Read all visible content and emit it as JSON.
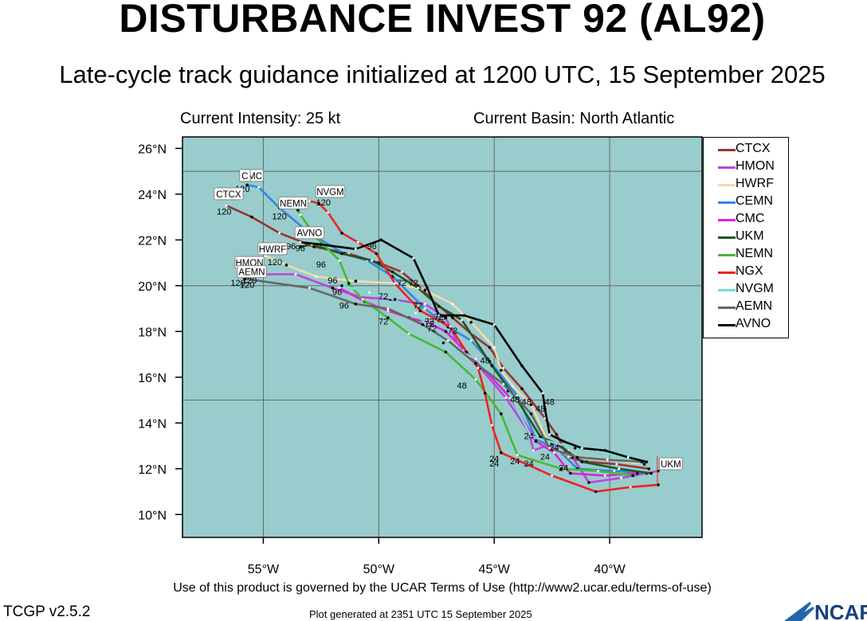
{
  "header": {
    "title": "DISTURBANCE INVEST 92 (AL92)",
    "subtitle": "Late-cycle track guidance initialized at 1200 UTC, 15 September 2025",
    "intensity": "Current Intensity: 25 kt",
    "basin": "Current Basin: North Atlantic"
  },
  "footer": {
    "terms": "Use of this product is governed by the UCAR Terms of Use (http://www2.ucar.edu/terms-of-use)",
    "version": "TCGP v2.5.2",
    "generated": "Plot generated at 2351 UTC   15 September 2025",
    "logo_text": "NCAR"
  },
  "colors": {
    "ocean": "#99cccc",
    "grid": "#666666"
  },
  "chart_data": {
    "type": "line",
    "xlim": [
      -58.5,
      -36
    ],
    "ylim": [
      9,
      26.5
    ],
    "xticks": [
      {
        "value": -55,
        "label": "55°W"
      },
      {
        "value": -50,
        "label": "50°W"
      },
      {
        "value": -45,
        "label": "45°W"
      },
      {
        "value": -40,
        "label": "40°W"
      }
    ],
    "yticks": [
      {
        "value": 10,
        "label": "10°N"
      },
      {
        "value": 12,
        "label": "12°N"
      },
      {
        "value": 14,
        "label": "14°N"
      },
      {
        "value": 16,
        "label": "16°N"
      },
      {
        "value": 18,
        "label": "18°N"
      },
      {
        "value": 20,
        "label": "20°N"
      },
      {
        "value": 22,
        "label": "22°N"
      },
      {
        "value": 24,
        "label": "24°N"
      },
      {
        "value": 26,
        "label": "26°N"
      }
    ],
    "gridlines": {
      "lons": [
        -55,
        -50,
        -45,
        -40
      ],
      "lats": [
        15,
        20,
        25
      ]
    },
    "legend_position": "right",
    "series": [
      {
        "name": "CTCX",
        "color": "#993333",
        "points": [
          [
            -38.3,
            12.0
          ],
          [
            -39.7,
            12.2
          ],
          [
            -41.0,
            12.3
          ],
          [
            -41.8,
            12.5
          ],
          [
            -42.3,
            13.5
          ],
          [
            -42.8,
            14.2
          ],
          [
            -43.8,
            15.5
          ],
          [
            -44.6,
            16.4
          ],
          [
            -45.2,
            17.3
          ],
          [
            -46.0,
            17.9
          ],
          [
            -46.8,
            18.6
          ],
          [
            -47.6,
            19.3
          ],
          [
            -48.3,
            20.0
          ],
          [
            -49.0,
            20.6
          ],
          [
            -50.0,
            21.0
          ],
          [
            -51.3,
            21.4
          ],
          [
            -52.8,
            21.7
          ],
          [
            -54.3,
            22.3
          ],
          [
            -55.5,
            23.0
          ],
          [
            -56.6,
            23.5
          ]
        ],
        "labels": [
          {
            "lon": -45.4,
            "lat": 16.6,
            "text": "48"
          },
          {
            "lon": -48.5,
            "lat": 20.0,
            "text": "72"
          }
        ]
      },
      {
        "name": "HMON",
        "color": "#bb44dd",
        "points": [
          [
            -37.9,
            11.9
          ],
          [
            -39.5,
            11.6
          ],
          [
            -40.9,
            11.4
          ],
          [
            -41.8,
            12.8
          ],
          [
            -42.5,
            13.1
          ],
          [
            -43.3,
            12.8
          ],
          [
            -43.5,
            13.6
          ],
          [
            -44.5,
            15.1
          ],
          [
            -45.6,
            16.4
          ],
          [
            -46.6,
            17.5
          ],
          [
            -47.1,
            18.6
          ],
          [
            -48.0,
            19.2
          ],
          [
            -49.5,
            19.4
          ],
          [
            -50.8,
            19.5
          ],
          [
            -52.0,
            19.9
          ],
          [
            -53.6,
            20.5
          ],
          [
            -55.5,
            20.5
          ]
        ],
        "labels": [
          {
            "lon": -44.1,
            "lat": 14.9,
            "text": "48"
          },
          {
            "lon": -47.8,
            "lat": 18.3,
            "text": "72"
          },
          {
            "lon": -49.8,
            "lat": 19.4,
            "text": "72"
          }
        ]
      },
      {
        "name": "HWRF",
        "color": "#eeddaa",
        "points": [
          [
            -38.5,
            12.2
          ],
          [
            -39.8,
            12.4
          ],
          [
            -41.6,
            12.5
          ],
          [
            -42.6,
            13.0
          ],
          [
            -43.4,
            14.8
          ],
          [
            -44.2,
            15.6
          ],
          [
            -44.7,
            16.3
          ],
          [
            -45.0,
            17.3
          ],
          [
            -46.0,
            18.4
          ],
          [
            -46.8,
            19.2
          ],
          [
            -48.0,
            19.8
          ],
          [
            -49.2,
            20.1
          ],
          [
            -51.0,
            20.2
          ],
          [
            -52.7,
            20.4
          ],
          [
            -54.0,
            20.9
          ],
          [
            -54.9,
            21.3
          ]
        ],
        "labels": [
          {
            "lon": -44.1,
            "lat": 12.2,
            "text": "24"
          },
          {
            "lon": -47.3,
            "lat": 18.4,
            "text": "72"
          }
        ]
      },
      {
        "name": "CEMN",
        "color": "#3388dd",
        "points": [
          [
            -38.4,
            11.8
          ],
          [
            -39.8,
            11.9
          ],
          [
            -41.4,
            12.0
          ],
          [
            -42.2,
            12.8
          ],
          [
            -43.2,
            13.3
          ],
          [
            -44.0,
            15.2
          ],
          [
            -45.2,
            16.7
          ],
          [
            -46.0,
            17.6
          ],
          [
            -47.0,
            18.2
          ],
          [
            -48.0,
            19.0
          ],
          [
            -49.4,
            20.4
          ],
          [
            -50.5,
            21.1
          ],
          [
            -51.5,
            21.4
          ],
          [
            -53.0,
            22.3
          ],
          [
            -54.3,
            23.4
          ],
          [
            -55.2,
            24.3
          ],
          [
            -55.7,
            24.4
          ]
        ],
        "labels": [
          {
            "lon": -43.6,
            "lat": 14.8,
            "text": "48"
          },
          {
            "lon": -48.3,
            "lat": 19.0,
            "text": "72"
          }
        ]
      },
      {
        "name": "CMC",
        "color": "#dd22dd",
        "points": [
          [
            -38.8,
            11.8
          ],
          [
            -40.2,
            11.7
          ],
          [
            -41.7,
            11.8
          ],
          [
            -42.4,
            12.7
          ],
          [
            -43.2,
            13.2
          ],
          [
            -44.3,
            15.1
          ],
          [
            -45.4,
            16.3
          ],
          [
            -46.3,
            17.2
          ],
          [
            -47.1,
            18.0
          ],
          [
            -47.9,
            18.4
          ],
          [
            -48.7,
            18.6
          ],
          [
            -49.6,
            18.9
          ],
          [
            -50.6,
            19.3
          ],
          [
            -51.7,
            19.9
          ]
        ],
        "labels": [
          {
            "lon": -43.5,
            "lat": 13.3,
            "text": "24"
          },
          {
            "lon": -47.7,
            "lat": 18.0,
            "text": "72"
          },
          {
            "lon": -51.8,
            "lat": 19.6,
            "text": "96"
          }
        ]
      },
      {
        "name": "UKM",
        "color": "#225522",
        "points": [
          [
            -38.2,
            11.8
          ],
          [
            -39.6,
            12.0
          ],
          [
            -41.2,
            12.3
          ],
          [
            -42.3,
            13.1
          ],
          [
            -43.0,
            13.4
          ],
          [
            -44.0,
            15.0
          ],
          [
            -45.1,
            16.5
          ],
          [
            -46.4,
            18.5
          ],
          [
            -47.4,
            19.1
          ],
          [
            -48.3,
            19.9
          ],
          [
            -49.4,
            20.6
          ],
          [
            -50.3,
            21.1
          ],
          [
            -51.6,
            21.4
          ],
          [
            -52.9,
            21.8
          ],
          [
            -53.4,
            21.7
          ]
        ],
        "labels": [
          {
            "lon": -42.4,
            "lat": 12.8,
            "text": "24"
          },
          {
            "lon": -49.0,
            "lat": 20.0,
            "text": "72"
          },
          {
            "lon": -53.8,
            "lat": 21.6,
            "text": "96"
          }
        ]
      },
      {
        "name": "NEMN",
        "color": "#44bb33",
        "points": [
          [
            -39.0,
            11.7
          ],
          [
            -40.5,
            11.9
          ],
          [
            -42.1,
            12.0
          ],
          [
            -44.0,
            12.6
          ],
          [
            -44.7,
            14.4
          ],
          [
            -45.8,
            15.9
          ],
          [
            -47.1,
            17.1
          ],
          [
            -48.7,
            17.9
          ],
          [
            -49.6,
            18.6
          ],
          [
            -50.7,
            19.4
          ],
          [
            -51.3,
            20.1
          ],
          [
            -51.7,
            21.1
          ],
          [
            -52.7,
            22.1
          ],
          [
            -53.4,
            23.1
          ],
          [
            -53.5,
            23.3
          ]
        ],
        "labels": [
          {
            "lon": -46.4,
            "lat": 15.5,
            "text": "48"
          },
          {
            "lon": -49.8,
            "lat": 18.3,
            "text": "72"
          },
          {
            "lon": -52.5,
            "lat": 20.8,
            "text": "96"
          },
          {
            "lon": -54.3,
            "lat": 22.9,
            "text": "120"
          }
        ]
      },
      {
        "name": "NGX",
        "color": "#ee2222",
        "points": [
          [
            -37.9,
            11.3
          ],
          [
            -39.1,
            11.2
          ],
          [
            -40.6,
            11.0
          ],
          [
            -42.5,
            11.7
          ],
          [
            -44.7,
            12.7
          ],
          [
            -45.1,
            13.9
          ],
          [
            -45.4,
            15.3
          ],
          [
            -45.7,
            16.4
          ],
          [
            -46.2,
            17.1
          ],
          [
            -46.9,
            18.2
          ],
          [
            -48.2,
            18.9
          ],
          [
            -49.3,
            20.1
          ],
          [
            -50.1,
            21.4
          ],
          [
            -50.9,
            21.9
          ],
          [
            -51.6,
            22.3
          ],
          [
            -52.2,
            23.2
          ],
          [
            -52.6,
            23.6
          ],
          [
            -53.0,
            23.7
          ]
        ],
        "labels": [
          {
            "lon": -45.0,
            "lat": 12.1,
            "text": "24"
          },
          {
            "lon": -45.0,
            "lat": 12.3,
            "text": "24"
          },
          {
            "lon": -47.8,
            "lat": 18.2,
            "text": "72"
          },
          {
            "lon": -50.3,
            "lat": 21.6,
            "text": "96"
          }
        ]
      },
      {
        "name": "NVGM",
        "color": "#77ddcc",
        "points": [
          [
            -38.5,
            12.2
          ],
          [
            -40.5,
            12.8
          ],
          [
            -41.5,
            12.9
          ],
          [
            -43.4,
            13.4
          ],
          [
            -44.4,
            15.4
          ],
          [
            -45.8,
            16.8
          ],
          [
            -47.2,
            17.5
          ],
          [
            -48.4,
            18.8
          ],
          [
            -49.3,
            19.4
          ],
          [
            -50.4,
            19.7
          ],
          [
            -51.6,
            20.0
          ]
        ],
        "labels": [
          {
            "lon": -42.8,
            "lat": 12.4,
            "text": "24"
          },
          {
            "lon": -46.8,
            "lat": 17.9,
            "text": "72"
          },
          {
            "lon": -52.0,
            "lat": 20.1,
            "text": "96"
          }
        ]
      },
      {
        "name": "AEMN",
        "color": "#666666",
        "points": [
          [
            -38.6,
            12.3
          ],
          [
            -40.1,
            12.4
          ],
          [
            -41.4,
            12.5
          ],
          [
            -42.6,
            12.9
          ],
          [
            -43.4,
            14.4
          ],
          [
            -44.6,
            15.7
          ],
          [
            -45.8,
            16.6
          ],
          [
            -47.0,
            17.6
          ],
          [
            -48.1,
            18.3
          ],
          [
            -49.6,
            19.0
          ],
          [
            -51.0,
            19.2
          ],
          [
            -53.0,
            19.9
          ],
          [
            -55.8,
            20.3
          ]
        ],
        "labels": [
          {
            "lon": -43.0,
            "lat": 14.5,
            "text": "48"
          },
          {
            "lon": -51.5,
            "lat": 19.0,
            "text": "96"
          },
          {
            "lon": -56.1,
            "lat": 20.0,
            "text": "120"
          }
        ]
      },
      {
        "name": "AVNO",
        "color": "#000000",
        "points": [
          [
            -38.4,
            12.3
          ],
          [
            -39.2,
            12.5
          ],
          [
            -40.2,
            12.8
          ],
          [
            -41.2,
            12.9
          ],
          [
            -42.0,
            13.2
          ],
          [
            -42.6,
            13.5
          ],
          [
            -42.8,
            14.6
          ],
          [
            -42.9,
            15.3
          ],
          [
            -43.8,
            16.5
          ],
          [
            -45.0,
            18.3
          ],
          [
            -46.3,
            18.7
          ],
          [
            -47.4,
            18.7
          ],
          [
            -47.9,
            19.9
          ],
          [
            -48.5,
            21.2
          ],
          [
            -49.9,
            22.0
          ],
          [
            -51.0,
            21.6
          ],
          [
            -52.5,
            21.8
          ],
          [
            -53.4,
            21.9
          ]
        ],
        "labels": [
          {
            "lon": -42.6,
            "lat": 14.8,
            "text": "48"
          },
          {
            "lon": -47.4,
            "lat": 18.5,
            "text": "72"
          }
        ]
      }
    ],
    "map_labels": [
      {
        "lon": -56.5,
        "lat": 24.0,
        "text": "CTCX"
      },
      {
        "lon": -55.5,
        "lat": 24.8,
        "text": "CMC"
      },
      {
        "lon": -55.8,
        "lat": 24.8,
        "text": "C"
      },
      {
        "lon": -53.7,
        "lat": 23.6,
        "text": "NEMN"
      },
      {
        "lon": -52.1,
        "lat": 24.1,
        "text": "NVGM"
      },
      {
        "lon": -53.0,
        "lat": 22.3,
        "text": "AVNO"
      },
      {
        "lon": -54.6,
        "lat": 21.6,
        "text": "HWRF"
      },
      {
        "lon": -55.6,
        "lat": 21.0,
        "text": "HMON"
      },
      {
        "lon": -55.5,
        "lat": 20.6,
        "text": "AEMN"
      }
    ],
    "loose_labels": [
      {
        "lon": -55.9,
        "lat": 24.1,
        "text": "120"
      },
      {
        "lon": -56.7,
        "lat": 23.1,
        "text": "120"
      },
      {
        "lon": -52.4,
        "lat": 23.5,
        "text": "120"
      },
      {
        "lon": -53.4,
        "lat": 21.5,
        "text": "96"
      },
      {
        "lon": -54.5,
        "lat": 20.9,
        "text": "120"
      },
      {
        "lon": -55.7,
        "lat": 19.9,
        "text": "120"
      },
      {
        "lon": -55.6,
        "lat": 20.1,
        "text": "120"
      },
      {
        "lon": -42.0,
        "lat": 11.9,
        "text": "24"
      },
      {
        "lon": -43.5,
        "lat": 12.1,
        "text": "24"
      }
    ],
    "init_label": {
      "lon": -37.9,
      "lat": 12.2,
      "text": "UKM"
    }
  }
}
